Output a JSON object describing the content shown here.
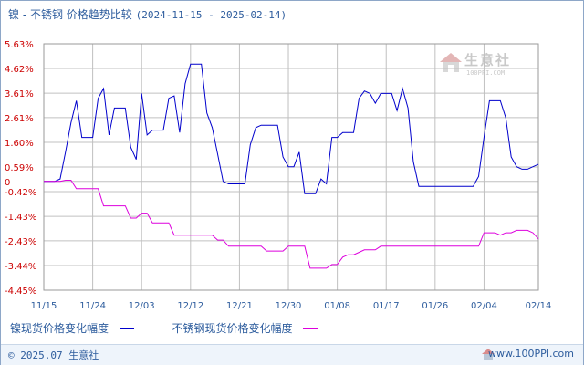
{
  "header": {
    "title": "镍 - 不锈钢 价格趋势比较",
    "date_range": "(2024-11-15 - 2025-02-14)"
  },
  "watermark": {
    "name": "生意社",
    "url": "100PPI.COM"
  },
  "footer": {
    "copyright": "© 2025.07 生意社",
    "link": "www.100PPI.com"
  },
  "colors": {
    "nickel": "#0000cc",
    "stainless": "#dd00dd",
    "grid": "#c0c0c0",
    "axis_text": "#cc0000",
    "x_text": "#2d5c9d"
  },
  "chart_data": {
    "type": "line",
    "title": "镍 - 不锈钢 价格趋势比较",
    "xlabel": "",
    "ylabel": "",
    "ylim": [
      -4.45,
      5.63
    ],
    "yticks": [
      "5.63%",
      "4.62%",
      "3.61%",
      "2.61%",
      "1.60%",
      "0.59%",
      "0",
      "-0.42%",
      "-1.43%",
      "-2.43%",
      "-3.44%",
      "-4.45%"
    ],
    "ytick_values": [
      5.63,
      4.62,
      3.61,
      2.61,
      1.6,
      0.59,
      0,
      -0.42,
      -1.43,
      -2.43,
      -3.44,
      -4.45
    ],
    "xticks": [
      "11/15",
      "11/24",
      "12/03",
      "12/12",
      "12/21",
      "12/30",
      "01/08",
      "01/17",
      "01/26",
      "02/04",
      "02/14"
    ],
    "xtick_dates": [
      "2024-11-15",
      "2024-11-24",
      "2024-12-03",
      "2024-12-12",
      "2024-12-21",
      "2024-12-30",
      "2025-01-08",
      "2025-01-17",
      "2025-01-26",
      "2025-02-04",
      "2025-02-14"
    ],
    "grid": true,
    "legend_position": "bottom",
    "series": [
      {
        "name": "镍现货价格变化幅度",
        "color": "#0000cc",
        "points": [
          [
            "2024-11-15",
            0
          ],
          [
            "2024-11-16",
            0
          ],
          [
            "2024-11-17",
            0
          ],
          [
            "2024-11-18",
            0.1
          ],
          [
            "2024-11-19",
            1.2
          ],
          [
            "2024-11-20",
            2.4
          ],
          [
            "2024-11-21",
            3.3
          ],
          [
            "2024-11-22",
            1.8
          ],
          [
            "2024-11-23",
            1.8
          ],
          [
            "2024-11-24",
            1.8
          ],
          [
            "2024-11-25",
            3.4
          ],
          [
            "2024-11-26",
            3.8
          ],
          [
            "2024-11-27",
            1.9
          ],
          [
            "2024-11-28",
            3.0
          ],
          [
            "2024-11-29",
            3.0
          ],
          [
            "2024-11-30",
            3.0
          ],
          [
            "2024-12-01",
            1.4
          ],
          [
            "2024-12-02",
            0.9
          ],
          [
            "2024-12-03",
            3.6
          ],
          [
            "2024-12-04",
            1.9
          ],
          [
            "2024-12-05",
            2.1
          ],
          [
            "2024-12-06",
            2.1
          ],
          [
            "2024-12-07",
            2.1
          ],
          [
            "2024-12-08",
            3.4
          ],
          [
            "2024-12-09",
            3.5
          ],
          [
            "2024-12-10",
            2.0
          ],
          [
            "2024-12-11",
            4.0
          ],
          [
            "2024-12-12",
            4.8
          ],
          [
            "2024-12-13",
            4.8
          ],
          [
            "2024-12-14",
            4.8
          ],
          [
            "2024-12-15",
            2.8
          ],
          [
            "2024-12-16",
            2.2
          ],
          [
            "2024-12-17",
            1.1
          ],
          [
            "2024-12-18",
            0
          ],
          [
            "2024-12-19",
            -0.1
          ],
          [
            "2024-12-20",
            -0.1
          ],
          [
            "2024-12-21",
            -0.1
          ],
          [
            "2024-12-22",
            -0.1
          ],
          [
            "2024-12-23",
            1.5
          ],
          [
            "2024-12-24",
            2.2
          ],
          [
            "2024-12-25",
            2.3
          ],
          [
            "2024-12-26",
            2.3
          ],
          [
            "2024-12-27",
            2.3
          ],
          [
            "2024-12-28",
            2.3
          ],
          [
            "2024-12-29",
            1.0
          ],
          [
            "2024-12-30",
            0.6
          ],
          [
            "2024-12-31",
            0.6
          ],
          [
            "2025-01-01",
            1.2
          ],
          [
            "2025-01-02",
            -0.5
          ],
          [
            "2025-01-03",
            -0.5
          ],
          [
            "2025-01-04",
            -0.5
          ],
          [
            "2025-01-05",
            0.1
          ],
          [
            "2025-01-06",
            -0.1
          ],
          [
            "2025-01-07",
            1.8
          ],
          [
            "2025-01-08",
            1.8
          ],
          [
            "2025-01-09",
            2.0
          ],
          [
            "2025-01-10",
            2.0
          ],
          [
            "2025-01-11",
            2.0
          ],
          [
            "2025-01-12",
            3.4
          ],
          [
            "2025-01-13",
            3.7
          ],
          [
            "2025-01-14",
            3.6
          ],
          [
            "2025-01-15",
            3.2
          ],
          [
            "2025-01-16",
            3.6
          ],
          [
            "2025-01-17",
            3.6
          ],
          [
            "2025-01-18",
            3.6
          ],
          [
            "2025-01-19",
            2.9
          ],
          [
            "2025-01-20",
            3.8
          ],
          [
            "2025-01-21",
            3.0
          ],
          [
            "2025-01-22",
            0.8
          ],
          [
            "2025-01-23",
            -0.2
          ],
          [
            "2025-01-24",
            -0.2
          ],
          [
            "2025-01-25",
            -0.2
          ],
          [
            "2025-01-26",
            -0.2
          ],
          [
            "2025-01-27",
            -0.2
          ],
          [
            "2025-01-28",
            -0.2
          ],
          [
            "2025-01-29",
            -0.2
          ],
          [
            "2025-01-30",
            -0.2
          ],
          [
            "2025-01-31",
            -0.2
          ],
          [
            "2025-02-01",
            -0.2
          ],
          [
            "2025-02-02",
            -0.2
          ],
          [
            "2025-02-03",
            0.2
          ],
          [
            "2025-02-04",
            1.8
          ],
          [
            "2025-02-05",
            3.3
          ],
          [
            "2025-02-06",
            3.3
          ],
          [
            "2025-02-07",
            3.3
          ],
          [
            "2025-02-08",
            2.6
          ],
          [
            "2025-02-09",
            1.0
          ],
          [
            "2025-02-10",
            0.6
          ],
          [
            "2025-02-11",
            0.5
          ],
          [
            "2025-02-12",
            0.5
          ],
          [
            "2025-02-13",
            0.6
          ],
          [
            "2025-02-14",
            0.7
          ]
        ]
      },
      {
        "name": "不锈钢现货价格变化幅度",
        "color": "#dd00dd",
        "points": [
          [
            "2024-11-15",
            0
          ],
          [
            "2024-11-18",
            0
          ],
          [
            "2024-11-19",
            0.05
          ],
          [
            "2024-11-20",
            0.05
          ],
          [
            "2024-11-21",
            -0.3
          ],
          [
            "2024-11-24",
            -0.3
          ],
          [
            "2024-11-25",
            -0.3
          ],
          [
            "2024-11-26",
            -1.0
          ],
          [
            "2024-11-30",
            -1.0
          ],
          [
            "2024-12-01",
            -1.5
          ],
          [
            "2024-12-02",
            -1.5
          ],
          [
            "2024-12-03",
            -1.3
          ],
          [
            "2024-12-04",
            -1.3
          ],
          [
            "2024-12-05",
            -1.7
          ],
          [
            "2024-12-08",
            -1.7
          ],
          [
            "2024-12-09",
            -2.2
          ],
          [
            "2024-12-16",
            -2.2
          ],
          [
            "2024-12-17",
            -2.4
          ],
          [
            "2024-12-18",
            -2.4
          ],
          [
            "2024-12-19",
            -2.65
          ],
          [
            "2024-12-25",
            -2.65
          ],
          [
            "2024-12-26",
            -2.85
          ],
          [
            "2024-12-29",
            -2.85
          ],
          [
            "2024-12-30",
            -2.65
          ],
          [
            "2025-01-02",
            -2.65
          ],
          [
            "2025-01-03",
            -3.55
          ],
          [
            "2025-01-06",
            -3.55
          ],
          [
            "2025-01-07",
            -3.4
          ],
          [
            "2025-01-08",
            -3.4
          ],
          [
            "2025-01-09",
            -3.1
          ],
          [
            "2025-01-10",
            -3.0
          ],
          [
            "2025-01-11",
            -3.0
          ],
          [
            "2025-01-12",
            -2.9
          ],
          [
            "2025-01-13",
            -2.8
          ],
          [
            "2025-01-15",
            -2.8
          ],
          [
            "2025-01-16",
            -2.65
          ],
          [
            "2025-02-03",
            -2.65
          ],
          [
            "2025-02-04",
            -2.1
          ],
          [
            "2025-02-06",
            -2.1
          ],
          [
            "2025-02-07",
            -2.2
          ],
          [
            "2025-02-08",
            -2.1
          ],
          [
            "2025-02-09",
            -2.1
          ],
          [
            "2025-02-10",
            -2.0
          ],
          [
            "2025-02-11",
            -2.0
          ],
          [
            "2025-02-12",
            -2.0
          ],
          [
            "2025-02-13",
            -2.1
          ],
          [
            "2025-02-14",
            -2.35
          ]
        ]
      }
    ]
  }
}
